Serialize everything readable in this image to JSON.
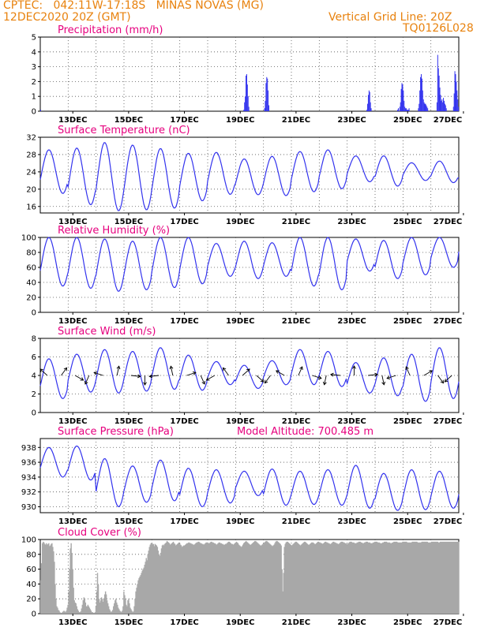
{
  "header": {
    "station": "CPTEC:   042:11W-17:18S   MINAS NOVAS (MG)",
    "run": "12DEC2020 20Z (GMT)",
    "grid_note": "Vertical Grid Line: 20Z",
    "code": "TQ0126L028"
  },
  "colors": {
    "header": "#e8820e",
    "title": "#e6007e",
    "series": "#3333ee",
    "cloud": "#a8a8a8",
    "wind_arrow": "#000000"
  },
  "chart_data": [
    {
      "id": "precip",
      "type": "bar",
      "title": "Precipitation (mm/h)",
      "ylim": [
        0,
        5
      ],
      "yticks": [
        0,
        1,
        2,
        3,
        4,
        5
      ],
      "xticks": [
        "13DEC",
        "15DEC",
        "17DEC",
        "19DEC",
        "21DEC",
        "23DEC",
        "25DEC",
        "27DEC"
      ],
      "values": [
        0.1,
        0,
        0,
        0,
        0,
        0,
        0,
        0,
        0,
        0,
        0,
        0,
        0,
        0,
        0,
        0,
        0,
        0,
        0,
        0,
        0,
        0,
        0,
        0,
        0,
        0,
        0,
        0,
        0,
        0,
        0,
        0,
        0,
        0,
        0,
        0,
        0,
        0,
        0,
        0,
        0,
        0,
        0,
        0,
        0,
        0,
        0,
        0,
        0,
        0,
        0,
        0,
        0,
        0,
        0,
        0,
        0,
        0,
        0,
        0,
        0,
        0,
        0,
        0,
        0,
        0,
        0,
        0,
        0,
        0,
        0,
        0,
        0,
        0,
        0,
        0,
        0,
        0,
        0,
        0,
        0,
        0,
        0,
        0,
        0,
        0,
        0,
        0,
        0,
        0,
        0,
        0,
        0,
        0,
        0,
        0,
        0,
        0,
        0,
        0,
        0,
        0,
        0,
        0,
        0,
        0,
        0,
        0,
        0,
        0,
        0,
        0,
        0,
        0,
        0,
        0,
        0,
        0,
        0,
        0,
        0,
        0,
        0,
        0,
        0,
        0,
        0,
        0,
        0,
        0,
        0,
        0,
        0,
        0,
        0,
        0,
        0,
        0,
        0,
        0,
        0,
        0,
        0,
        0,
        0,
        0,
        0,
        0,
        0,
        0,
        0,
        0,
        0,
        0,
        0,
        0,
        0,
        0,
        0,
        0,
        0,
        0,
        0,
        0,
        0,
        0,
        0,
        0,
        0,
        0,
        0,
        0,
        0,
        0,
        0,
        0,
        0,
        0,
        0,
        0,
        0,
        0,
        0,
        0,
        0,
        0,
        0,
        0,
        0,
        0,
        0,
        0,
        0,
        0,
        0,
        0,
        0,
        0,
        0,
        0,
        0,
        0,
        0,
        0,
        0,
        0,
        0,
        0,
        0,
        0,
        0,
        0,
        0,
        0,
        0,
        0,
        0,
        0,
        0,
        0,
        0,
        0,
        0,
        0,
        0,
        0,
        0,
        0,
        0,
        0,
        0,
        0,
        0,
        0,
        0,
        0,
        0,
        0,
        0,
        0,
        0,
        0,
        0,
        0,
        0,
        0,
        0,
        0,
        0,
        0,
        0,
        0,
        0,
        0,
        0,
        0,
        0,
        0,
        0,
        0,
        0,
        0,
        0,
        0,
        0,
        0,
        0,
        0,
        0,
        0,
        0,
        0,
        0,
        0,
        0,
        0,
        0,
        0,
        0,
        0,
        0,
        0,
        0,
        0,
        0.1,
        0.6,
        1.0,
        2.4,
        2.5,
        1.8,
        1.0,
        0.3,
        0,
        0,
        0,
        0,
        0,
        0,
        0,
        0,
        0,
        0,
        0,
        0,
        0,
        0,
        0,
        0,
        0,
        0,
        0,
        0,
        0,
        0.2,
        0.7,
        1.9,
        2.3,
        2.2,
        1.4,
        0.4,
        0,
        0,
        0,
        0,
        0,
        0,
        0,
        0,
        0,
        0,
        0,
        0,
        0,
        0,
        0,
        0,
        0,
        0,
        0,
        0,
        0,
        0,
        0,
        0,
        0,
        0,
        0,
        0,
        0,
        0,
        0,
        0,
        0,
        0,
        0,
        0,
        0,
        0,
        0,
        0,
        0,
        0,
        0,
        0,
        0,
        0,
        0,
        0,
        0,
        0,
        0,
        0,
        0,
        0,
        0,
        0,
        0,
        0,
        0,
        0,
        0,
        0,
        0,
        0,
        0,
        0,
        0,
        0,
        0,
        0,
        0,
        0,
        0,
        0,
        0,
        0,
        0,
        0,
        0,
        0,
        0,
        0,
        0,
        0,
        0,
        0,
        0,
        0,
        0,
        0,
        0,
        0,
        0,
        0,
        0,
        0,
        0,
        0,
        0,
        0,
        0,
        0,
        0,
        0,
        0,
        0,
        0,
        0,
        0,
        0,
        0,
        0,
        0,
        0,
        0,
        0,
        0,
        0,
        0,
        0,
        0,
        0,
        0,
        0,
        0,
        0,
        0,
        0,
        0,
        0,
        0,
        0,
        0,
        0,
        0,
        0,
        0.1,
        0.5,
        1.1,
        1.4,
        1.3,
        0.6,
        0.2,
        0,
        0,
        0,
        0,
        0,
        0,
        0,
        0,
        0,
        0,
        0,
        0,
        0,
        0,
        0,
        0,
        0,
        0,
        0,
        0,
        0,
        0,
        0,
        0,
        0,
        0,
        0,
        0,
        0,
        0,
        0,
        0,
        0,
        0,
        0,
        0,
        0.1,
        0.2,
        0,
        0.3,
        0.6,
        1.5,
        1.9,
        1.8,
        1.4,
        0.7,
        0.3,
        0.2,
        0.2,
        0.1,
        0.1,
        0.1,
        0.2,
        0,
        0,
        0,
        0,
        0,
        0,
        0,
        0,
        0,
        0,
        0,
        0,
        0.2,
        0.5,
        1.4,
        2.3,
        2.5,
        2.2,
        1.4,
        0.8,
        0.6,
        0.5,
        0.5,
        0.4,
        0.3,
        0.2,
        0,
        0,
        0,
        0,
        0,
        0,
        0,
        0,
        0,
        0,
        0,
        0,
        0.6,
        3.8,
        2.9,
        2.4,
        1.6,
        1.1,
        0.7,
        0.8,
        0.6,
        0.9,
        0.7,
        0.5,
        0.4,
        0.2,
        0,
        0,
        0,
        0,
        0,
        0,
        0,
        0,
        0,
        0.3,
        1.2,
        2.7,
        2.5,
        2.0,
        1.4,
        0.8,
        0.3
      ]
    },
    {
      "id": "temp",
      "type": "line",
      "title": "Surface Temperature (nC)",
      "ylim": [
        14.5,
        32
      ],
      "yticks": [
        16,
        20,
        24,
        28,
        32
      ],
      "xticks": [
        "13DEC",
        "15DEC",
        "17DEC",
        "19DEC",
        "21DEC",
        "23DEC",
        "25DEC",
        "27DEC"
      ],
      "series": [
        {
          "min": [
            19.0,
            16.4,
            15.0,
            15.2,
            15.6,
            17.3,
            18.8,
            18.7,
            18.5,
            19.4,
            20.1,
            21.7,
            20.7,
            22.0,
            21.5,
            21.3
          ],
          "max": [
            29.1,
            29.5,
            30.8,
            30.2,
            29.4,
            28.3,
            28.5,
            27.0,
            27.6,
            28.7,
            29.1,
            27.7,
            27.7,
            26.1,
            26.5,
            25.6
          ]
        }
      ]
    },
    {
      "id": "rh",
      "type": "line",
      "title": "Relative Humidity (%)",
      "ylim": [
        0,
        100
      ],
      "yticks": [
        0,
        20,
        40,
        60,
        80,
        100
      ],
      "xticks": [
        "13DEC",
        "15DEC",
        "17DEC",
        "19DEC",
        "21DEC",
        "23DEC",
        "25DEC",
        "27DEC"
      ],
      "series": [
        {
          "min": [
            35,
            32,
            28,
            30,
            33,
            38,
            48,
            45,
            48,
            35,
            30,
            55,
            45,
            50,
            60,
            72
          ],
          "max": [
            100,
            100,
            98,
            95,
            100,
            100,
            92,
            95,
            93,
            100,
            100,
            98,
            96,
            100,
            100,
            100
          ]
        }
      ]
    },
    {
      "id": "wind",
      "type": "line",
      "title": "Surface Wind (m/s)",
      "ylim": [
        0,
        8
      ],
      "yticks": [
        0,
        2,
        4,
        6,
        8
      ],
      "xticks": [
        "13DEC",
        "15DEC",
        "17DEC",
        "19DEC",
        "21DEC",
        "23DEC",
        "25DEC",
        "27DEC"
      ],
      "series": [
        {
          "min": [
            1.5,
            2.2,
            2.1,
            2.3,
            2.5,
            2.4,
            3.0,
            2.6,
            3.0,
            3.0,
            2.8,
            2.1,
            1.8,
            1.2,
            1.5,
            2.0
          ],
          "max": [
            5.8,
            6.3,
            6.8,
            6.6,
            7.0,
            6.2,
            5.5,
            5.1,
            5.6,
            6.8,
            6.6,
            5.4,
            5.9,
            6.3,
            7.0,
            6.2
          ]
        }
      ]
    },
    {
      "id": "psfc",
      "type": "line",
      "title": "Surface Pressure (hPa)",
      "annotation": "Model Altitude: 700.485 m",
      "ylim": [
        929.2,
        939.2
      ],
      "yticks": [
        930,
        932,
        934,
        936,
        938
      ],
      "xticks": [
        "13DEC",
        "15DEC",
        "17DEC",
        "19DEC",
        "21DEC",
        "23DEC",
        "25DEC",
        "27DEC"
      ],
      "series": [
        {
          "min": [
            934.0,
            933.6,
            930.0,
            930.6,
            930.8,
            930.0,
            930.5,
            931.5,
            930.2,
            930.3,
            930.2,
            929.8,
            929.5,
            929.6,
            929.8,
            930.0
          ],
          "max": [
            938.0,
            938.2,
            936.5,
            935.5,
            936.3,
            935.2,
            935.0,
            934.8,
            935.1,
            934.8,
            935.0,
            935.6,
            934.5,
            935.0,
            934.8,
            935.3
          ]
        }
      ]
    },
    {
      "id": "cloud",
      "type": "area",
      "title": "Cloud Cover (%)",
      "ylim": [
        0,
        100
      ],
      "yticks": [
        0,
        20,
        40,
        60,
        80,
        100
      ],
      "xticks": [
        "13DEC",
        "15DEC",
        "17DEC",
        "19DEC",
        "21DEC",
        "23DEC",
        "25DEC",
        "27DEC"
      ],
      "values": [
        45,
        68,
        95,
        97,
        96,
        94,
        93,
        95,
        93,
        94,
        95,
        91,
        92,
        94,
        95,
        90,
        84,
        70,
        40,
        20,
        10,
        8,
        5,
        4,
        2,
        1,
        1,
        2,
        3,
        4,
        3,
        2,
        4,
        8,
        12,
        30,
        60,
        88,
        95,
        82,
        60,
        35,
        18,
        15,
        14,
        10,
        6,
        4,
        2,
        2,
        3,
        7,
        12,
        18,
        22,
        20,
        15,
        10,
        10,
        12,
        10,
        8,
        6,
        4,
        2,
        2,
        1,
        1,
        2,
        10,
        30,
        55,
        40,
        20,
        15,
        18,
        22,
        20,
        16,
        20,
        26,
        30,
        26,
        18,
        14,
        10,
        6,
        4,
        2,
        3,
        5,
        10,
        14,
        18,
        20,
        15,
        12,
        8,
        6,
        4,
        3,
        2,
        4,
        10,
        30,
        25,
        20,
        12,
        10,
        18,
        20,
        14,
        8,
        6,
        4,
        2,
        3,
        10,
        20,
        30,
        35,
        40,
        45,
        48,
        50,
        52,
        55,
        58,
        60,
        62,
        66,
        70,
        75,
        72,
        80,
        85,
        90,
        93,
        95,
        95,
        94,
        94,
        91,
        94,
        93,
        92,
        90,
        85,
        80,
        78,
        82,
        88,
        92,
        93,
        92,
        94,
        95,
        96,
        98,
        97,
        96,
        95,
        93,
        94,
        95,
        96,
        97,
        95,
        94,
        92,
        93,
        94,
        95,
        96,
        95,
        93,
        92,
        90,
        91,
        92,
        92,
        93,
        94,
        95,
        95,
        96,
        96,
        95,
        95,
        94,
        94,
        93,
        93,
        94,
        95,
        96,
        96,
        97,
        97,
        96,
        95,
        95,
        94,
        94,
        93,
        94,
        95,
        96,
        96,
        96,
        95,
        95,
        96,
        97,
        97,
        96,
        96,
        95,
        95,
        94,
        93,
        94,
        95,
        96,
        96,
        95,
        95,
        94,
        94,
        93,
        93,
        94,
        94,
        95,
        96,
        97,
        97,
        96,
        95,
        94,
        94,
        93,
        94,
        95,
        96,
        97,
        96,
        95,
        93,
        92,
        91,
        90,
        91,
        93,
        95,
        96,
        97,
        98,
        97,
        96,
        95,
        94,
        93,
        93,
        94,
        95,
        96,
        97,
        98,
        98,
        97,
        96,
        95,
        94,
        93,
        92,
        92,
        93,
        94,
        95,
        96,
        97,
        98,
        98,
        97,
        96,
        95,
        94,
        93,
        92,
        91,
        92,
        93,
        95,
        97,
        98,
        98,
        97,
        96,
        95,
        94,
        92,
        60,
        30,
        55,
        90,
        94,
        96,
        97,
        97,
        96,
        95,
        94,
        93,
        92,
        93,
        94,
        95,
        96,
        97,
        97,
        96,
        95,
        94,
        93,
        92,
        93,
        94,
        95,
        96,
        97,
        97,
        96,
        95,
        94,
        93,
        93,
        94,
        95,
        96,
        96,
        96,
        95,
        94,
        94,
        95,
        96,
        97,
        97,
        96,
        96,
        95,
        95,
        94,
        95,
        96,
        97,
        97,
        96,
        96,
        95,
        95,
        94,
        94,
        95,
        96,
        97,
        97,
        96,
        96,
        95,
        95,
        94,
        94,
        95,
        96,
        97,
        97,
        97,
        96,
        96,
        95,
        95,
        94,
        94,
        95,
        96,
        97,
        97,
        97,
        96,
        96,
        96,
        95,
        95,
        95,
        96,
        96,
        97,
        97,
        97,
        96,
        96,
        95,
        95,
        96,
        96,
        97,
        97,
        97,
        96,
        96,
        96,
        95,
        95,
        95,
        96,
        96,
        97,
        97,
        97,
        97,
        96,
        96,
        96,
        95,
        95,
        95,
        96,
        96,
        97,
        97,
        97,
        97,
        96,
        96,
        96,
        96,
        95,
        95,
        96,
        96,
        97,
        97,
        97,
        97,
        97,
        96,
        96,
        96,
        96,
        96,
        96,
        97,
        97,
        97,
        97,
        97,
        97,
        96,
        96,
        96,
        96,
        96,
        96,
        97,
        97,
        97,
        97,
        97,
        97,
        97,
        96,
        96,
        96,
        96,
        96,
        97,
        97,
        97,
        97,
        97,
        97,
        97,
        97,
        96,
        96,
        96,
        96,
        97,
        97,
        97,
        97,
        97,
        97,
        97,
        97,
        97,
        96,
        96,
        97,
        97,
        97,
        97,
        97,
        97,
        97,
        97,
        97,
        97,
        97,
        97,
        97,
        97,
        97,
        97,
        97,
        97,
        97,
        97,
        97,
        97,
        97,
        97
      ]
    }
  ]
}
